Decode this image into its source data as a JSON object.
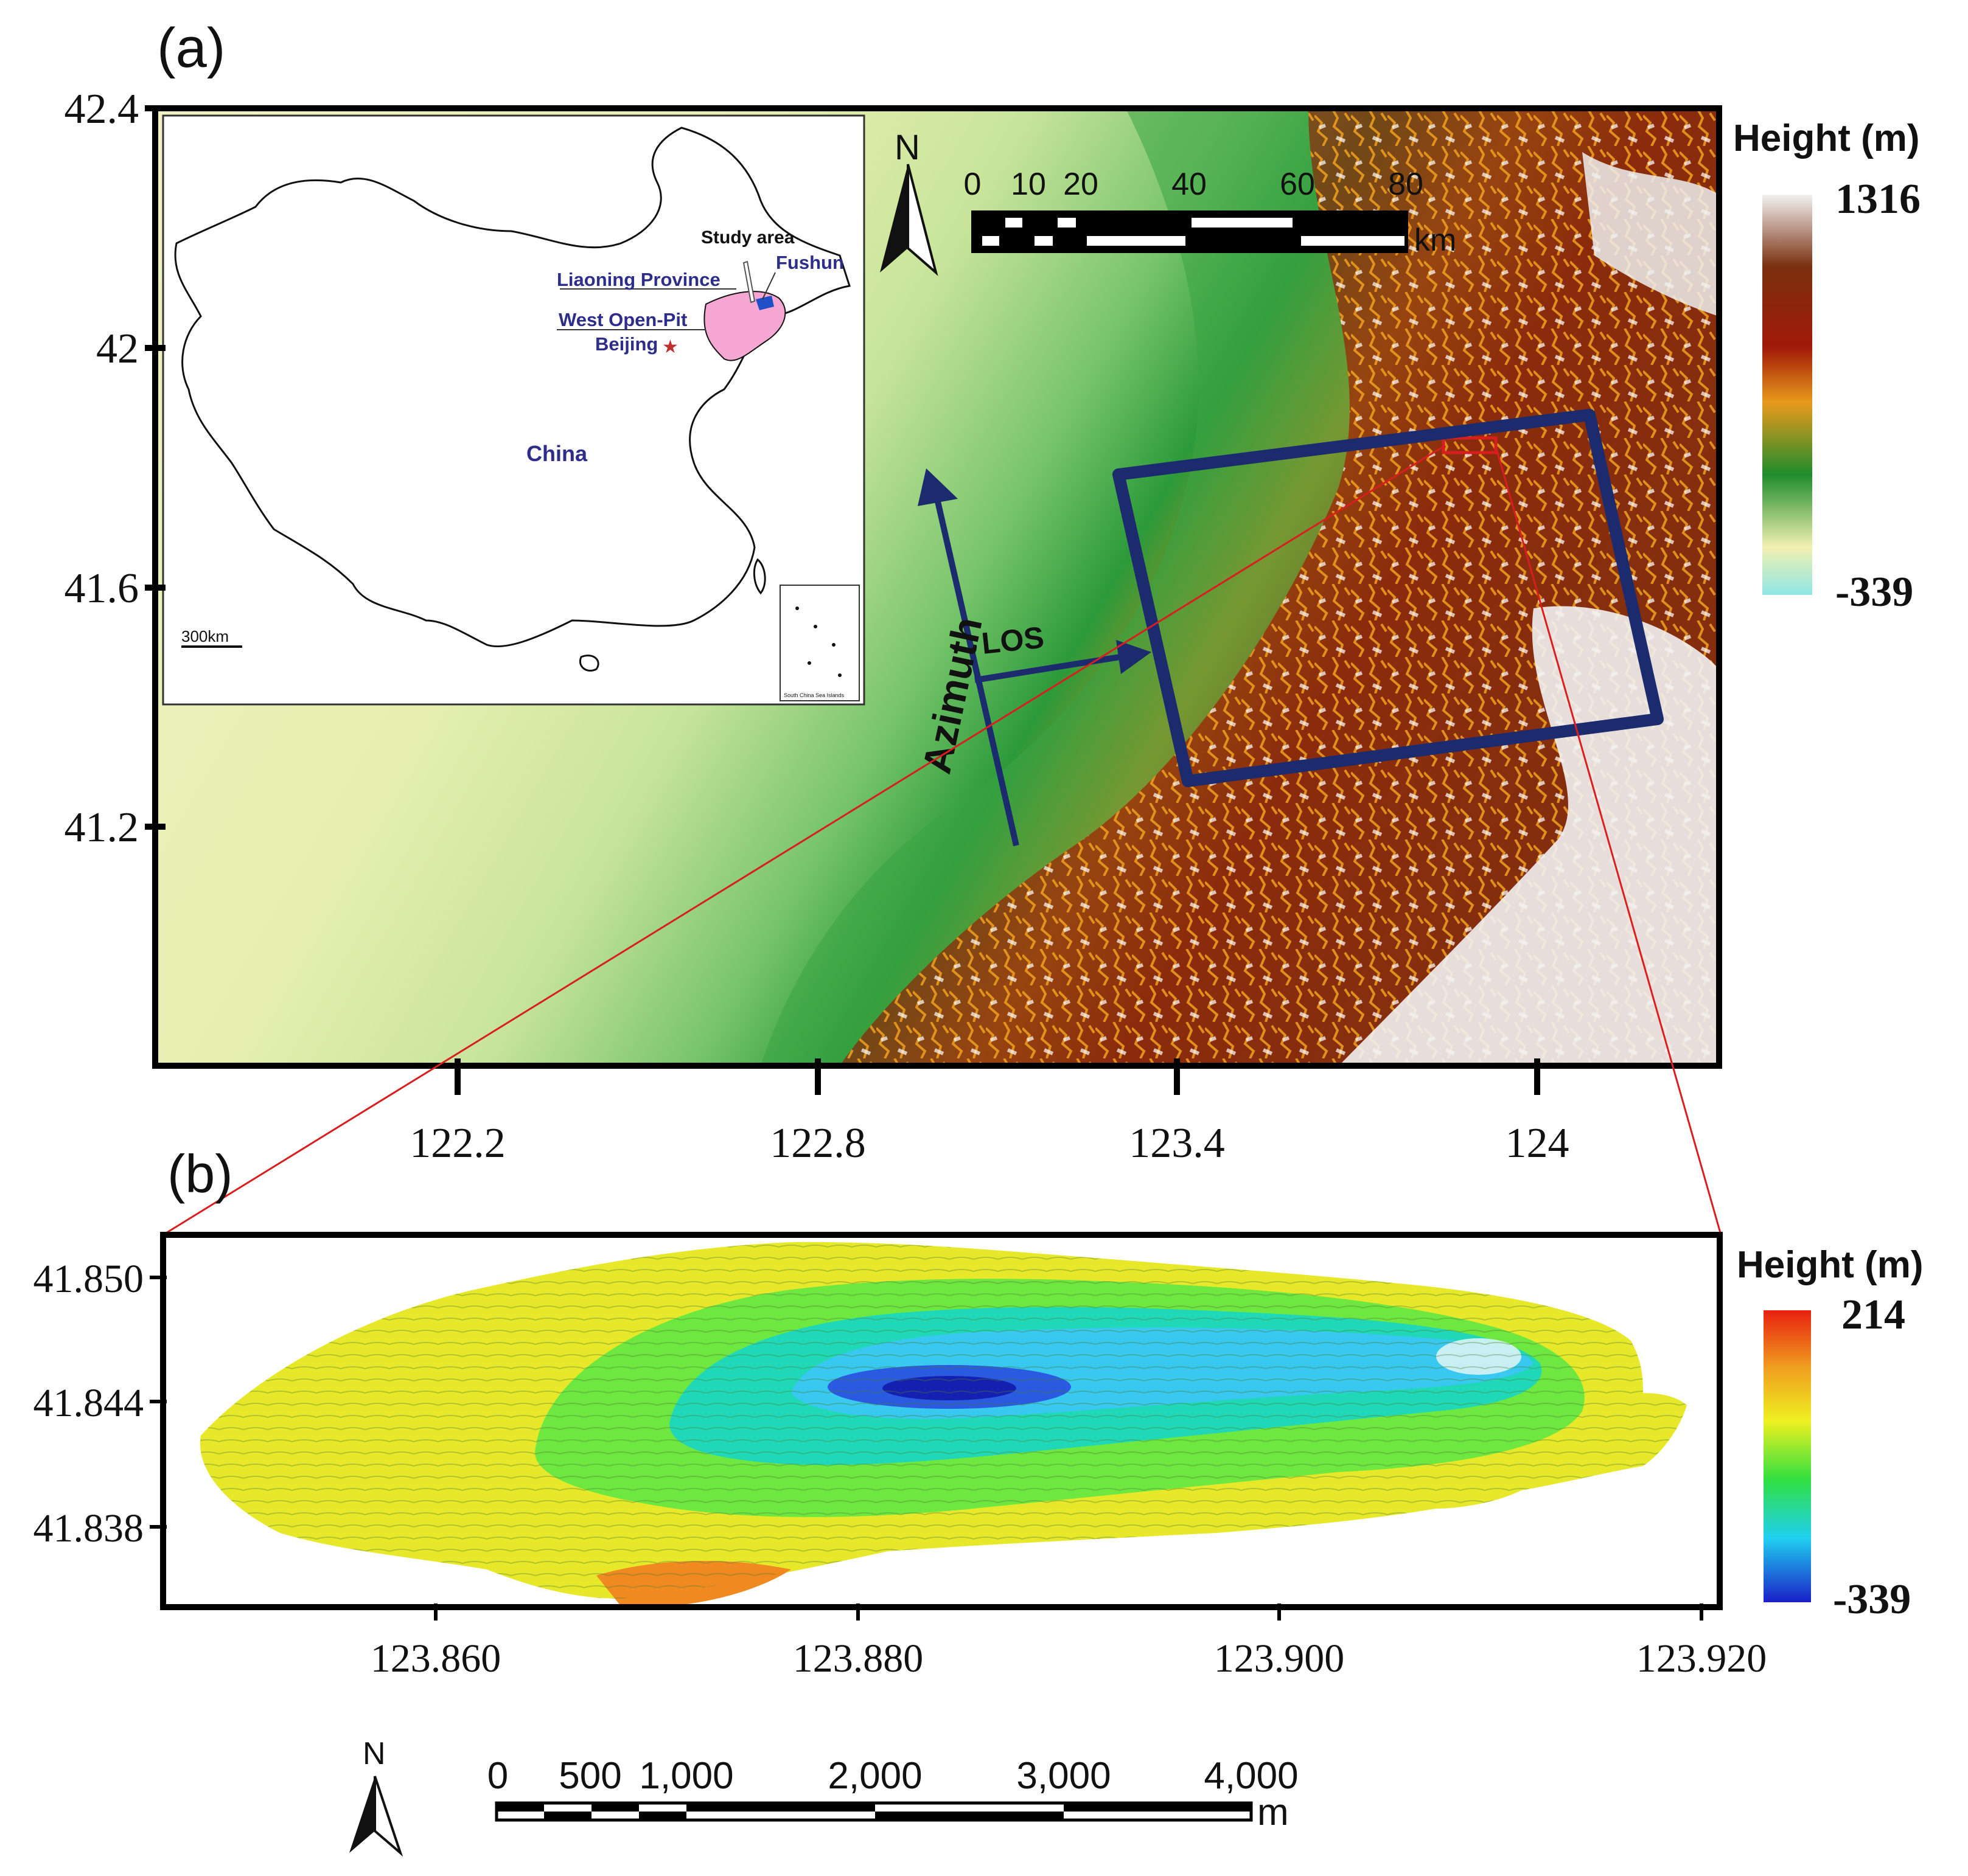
{
  "panel_a": {
    "label": "(a)",
    "lat_ticks": [
      "42.4",
      "42",
      "41.6",
      "41.2"
    ],
    "lon_ticks": [
      "122.2",
      "122.8",
      "123.4",
      "124"
    ],
    "north_label": "N",
    "scalebar": {
      "ticks": [
        "0",
        "10",
        "20",
        "40",
        "60",
        "80"
      ],
      "unit": "km"
    },
    "legend": {
      "title": "Height (m)",
      "max": "1316",
      "min": "-339",
      "colors": [
        "#f2f2f2",
        "#7a3010",
        "#a01808",
        "#e89a1c",
        "#1e8c2c",
        "#f2f0b0",
        "#8fe6e6"
      ]
    },
    "arrows": {
      "azimuth": "Azimuth",
      "los": "LOS",
      "color": "#1c2a6e"
    },
    "inset": {
      "china": "China",
      "study_area": "Study area",
      "liaoning": "Liaoning Province",
      "fushun": "Fushun",
      "west_open_pit": "West Open-Pit",
      "beijing": "Beijing",
      "scale": "300km",
      "south_china_sea": "South China Sea Islands",
      "label_color": "#2e2e8a"
    }
  },
  "panel_b": {
    "label": "(b)",
    "lat_ticks": [
      "41.850",
      "41.844",
      "41.838"
    ],
    "lon_ticks": [
      "123.860",
      "123.880",
      "123.900",
      "123.920"
    ],
    "north_label": "N",
    "scalebar": {
      "ticks": [
        "0",
        "500",
        "1,000",
        "2,000",
        "3,000",
        "4,000"
      ],
      "unit": "m"
    },
    "legend": {
      "title": "Height (m)",
      "max": "214",
      "min": "-339",
      "colors": [
        "#e82010",
        "#f0a020",
        "#eef020",
        "#30e040",
        "#20d0f0",
        "#1a20c8"
      ]
    }
  },
  "highlight_color": "#d81e1e"
}
